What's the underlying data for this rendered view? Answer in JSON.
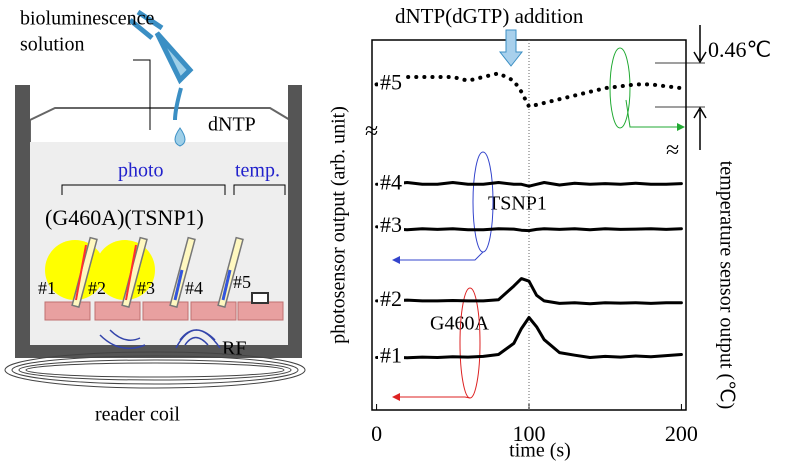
{
  "diagram": {
    "solution_label": [
      "bioluminescence",
      "solution"
    ],
    "drop_label": "dNTP",
    "photo_label": "photo",
    "temp_label": "temp.",
    "sensor_types": "(G460A)(TSNP1)",
    "sensors": [
      "#1",
      "#2",
      "#3",
      "#4",
      "#5"
    ],
    "rf_label": "RF",
    "coil_label": "reader coil"
  },
  "chart_data": {
    "type": "line",
    "annotation": "dNTP(dGTP) addition",
    "x_label": "time (s)",
    "y_label": "photosensor output (arb. unit)",
    "y2_label": "temperature sensor output (℃)",
    "scale_label": "0.46℃",
    "group_labels": [
      "TSNP1",
      "G460A"
    ],
    "x": [
      0,
      10,
      20,
      30,
      40,
      50,
      60,
      70,
      80,
      90,
      95,
      100,
      105,
      110,
      120,
      130,
      140,
      150,
      160,
      170,
      180,
      190,
      200
    ],
    "xlim": [
      -3,
      203
    ],
    "xticks": [
      0,
      100,
      200
    ],
    "ylim": [
      0,
      100
    ],
    "series": [
      {
        "name": "#5",
        "color": "#000000",
        "style": "dotted",
        "axis": "y2",
        "values": [
          88,
          89,
          90,
          90,
          90,
          90,
          89,
          90,
          91,
          89,
          86,
          82,
          82.5,
          83,
          84,
          85,
          86,
          87,
          87.5,
          88,
          88,
          87.5,
          87
        ]
      },
      {
        "name": "#4",
        "color": "#000000",
        "values": [
          61,
          61,
          61.5,
          61,
          61,
          61.5,
          61,
          61,
          61.5,
          61,
          61,
          60.5,
          61,
          61.5,
          60.8,
          61.3,
          61,
          61.2,
          61,
          61.3,
          61,
          61,
          61.2
        ]
      },
      {
        "name": "#3",
        "color": "#000000",
        "values": [
          49.5,
          49,
          48.7,
          49,
          48.8,
          49,
          48.7,
          48.7,
          49,
          48.9,
          48.6,
          48.5,
          48.8,
          49,
          48.8,
          49,
          48.7,
          49,
          48.8,
          48.9,
          49,
          48.8,
          49
        ]
      },
      {
        "name": "#2",
        "color": "#000000",
        "values": [
          29.5,
          29.5,
          29.7,
          29.5,
          29.5,
          29.6,
          29.5,
          29.5,
          29.8,
          33.5,
          35.5,
          34.8,
          31,
          29.5,
          28.8,
          29,
          28.7,
          29,
          28.9,
          29,
          28.8,
          29,
          29
        ]
      },
      {
        "name": "#1",
        "color": "#000000",
        "values": [
          14.2,
          14.3,
          14.1,
          14.3,
          14.2,
          14.4,
          14.3,
          14.5,
          15,
          18,
          22,
          25,
          22.5,
          19,
          15.5,
          14.8,
          14.2,
          14.5,
          14.3,
          14.6,
          14.4,
          14.7,
          15
        ]
      }
    ]
  }
}
